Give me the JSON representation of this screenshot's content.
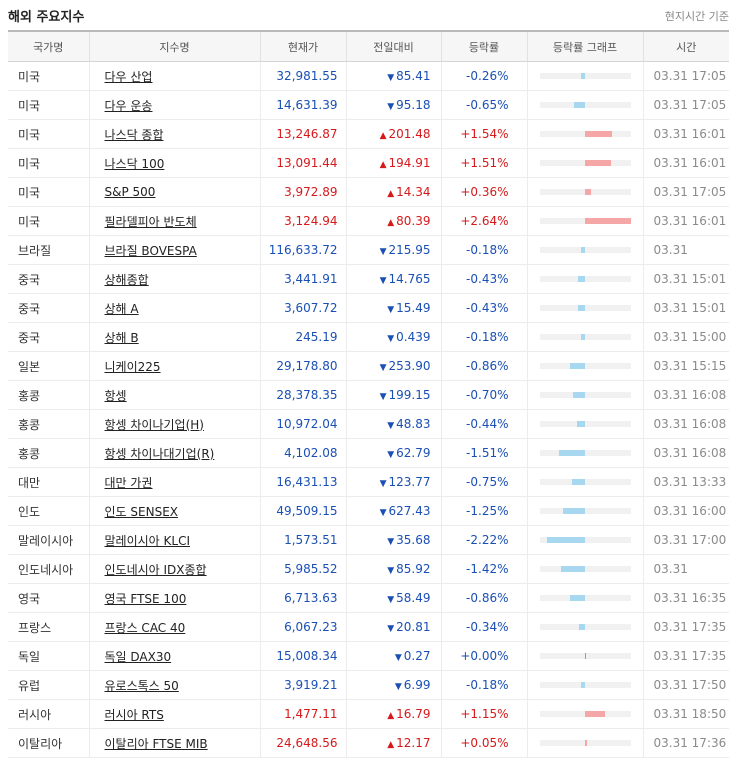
{
  "header": {
    "title": "해외 주요지수",
    "note": "현지시간 기준"
  },
  "columns": {
    "country": "국가명",
    "name": "지수명",
    "price": "현재가",
    "change": "전일대비",
    "rate": "등락률",
    "graph": "등락률 그래프",
    "time": "시간"
  },
  "colors": {
    "up": "#d6191b",
    "down": "#1a4fb4",
    "bar_up": "#f5a6a6",
    "bar_down": "#a8d8f0"
  },
  "rows": [
    {
      "country": "미국",
      "name": "다우 산업",
      "price": "32,981.55",
      "dir": "down",
      "change": "85.41",
      "rate": "-0.26%",
      "pct": -0.26,
      "time": "03.31 17:05",
      "group_start": false
    },
    {
      "country": "미국",
      "name": "다우 운송",
      "price": "14,631.39",
      "dir": "down",
      "change": "95.18",
      "rate": "-0.65%",
      "pct": -0.65,
      "time": "03.31 17:05",
      "group_start": false
    },
    {
      "country": "미국",
      "name": "나스닥 종합",
      "price": "13,246.87",
      "dir": "up",
      "change": "201.48",
      "rate": "+1.54%",
      "pct": 1.54,
      "time": "03.31 16:01",
      "group_start": false
    },
    {
      "country": "미국",
      "name": "나스닥 100",
      "price": "13,091.44",
      "dir": "up",
      "change": "194.91",
      "rate": "+1.51%",
      "pct": 1.51,
      "time": "03.31 16:01",
      "group_start": false
    },
    {
      "country": "미국",
      "name": "S&P 500",
      "price": "3,972.89",
      "dir": "up",
      "change": "14.34",
      "rate": "+0.36%",
      "pct": 0.36,
      "time": "03.31 17:05",
      "group_start": false
    },
    {
      "country": "미국",
      "name": "필라델피아 반도체",
      "price": "3,124.94",
      "dir": "up",
      "change": "80.39",
      "rate": "+2.64%",
      "pct": 2.64,
      "time": "03.31 16:01",
      "group_start": false
    },
    {
      "country": "브라질",
      "name": "브라질 BOVESPA",
      "price": "116,633.72",
      "dir": "down",
      "change": "215.95",
      "rate": "-0.18%",
      "pct": -0.18,
      "time": "03.31",
      "group_start": false
    },
    {
      "country": "중국",
      "name": "상해종합",
      "price": "3,441.91",
      "dir": "down",
      "change": "14.765",
      "rate": "-0.43%",
      "pct": -0.43,
      "time": "03.31 15:01",
      "group_start": true
    },
    {
      "country": "중국",
      "name": "상해 A",
      "price": "3,607.72",
      "dir": "down",
      "change": "15.49",
      "rate": "-0.43%",
      "pct": -0.43,
      "time": "03.31 15:01",
      "group_start": false
    },
    {
      "country": "중국",
      "name": "상해 B",
      "price": "245.19",
      "dir": "down",
      "change": "0.439",
      "rate": "-0.18%",
      "pct": -0.18,
      "time": "03.31 15:00",
      "group_start": false
    },
    {
      "country": "일본",
      "name": "니케이225",
      "price": "29,178.80",
      "dir": "down",
      "change": "253.90",
      "rate": "-0.86%",
      "pct": -0.86,
      "time": "03.31 15:15",
      "group_start": false
    },
    {
      "country": "홍콩",
      "name": "항셍",
      "price": "28,378.35",
      "dir": "down",
      "change": "199.15",
      "rate": "-0.70%",
      "pct": -0.7,
      "time": "03.31 16:08",
      "group_start": false
    },
    {
      "country": "홍콩",
      "name": "항셍 차이나기업(H)",
      "price": "10,972.04",
      "dir": "down",
      "change": "48.83",
      "rate": "-0.44%",
      "pct": -0.44,
      "time": "03.31 16:08",
      "group_start": false
    },
    {
      "country": "홍콩",
      "name": "항셍 차이나대기업(R)",
      "price": "4,102.08",
      "dir": "down",
      "change": "62.79",
      "rate": "-1.51%",
      "pct": -1.51,
      "time": "03.31 16:08",
      "group_start": false
    },
    {
      "country": "대만",
      "name": "대만 가권",
      "price": "16,431.13",
      "dir": "down",
      "change": "123.77",
      "rate": "-0.75%",
      "pct": -0.75,
      "time": "03.31 13:33",
      "group_start": false
    },
    {
      "country": "인도",
      "name": "인도 SENSEX",
      "price": "49,509.15",
      "dir": "down",
      "change": "627.43",
      "rate": "-1.25%",
      "pct": -1.25,
      "time": "03.31 16:00",
      "group_start": false
    },
    {
      "country": "말레이시아",
      "name": "말레이시아 KLCI",
      "price": "1,573.51",
      "dir": "down",
      "change": "35.68",
      "rate": "-2.22%",
      "pct": -2.22,
      "time": "03.31 17:00",
      "group_start": false
    },
    {
      "country": "인도네시아",
      "name": "인도네시아 IDX종합",
      "price": "5,985.52",
      "dir": "down",
      "change": "85.92",
      "rate": "-1.42%",
      "pct": -1.42,
      "time": "03.31",
      "group_start": false
    },
    {
      "country": "영국",
      "name": "영국 FTSE 100",
      "price": "6,713.63",
      "dir": "down",
      "change": "58.49",
      "rate": "-0.86%",
      "pct": -0.86,
      "time": "03.31 16:35",
      "group_start": true
    },
    {
      "country": "프랑스",
      "name": "프랑스 CAC 40",
      "price": "6,067.23",
      "dir": "down",
      "change": "20.81",
      "rate": "-0.34%",
      "pct": -0.34,
      "time": "03.31 17:35",
      "group_start": false
    },
    {
      "country": "독일",
      "name": "독일 DAX30",
      "price": "15,008.34",
      "dir": "down",
      "change": "0.27",
      "rate": "+0.00%",
      "pct": 0.0,
      "time": "03.31 17:35",
      "group_start": false
    },
    {
      "country": "유럽",
      "name": "유로스톡스 50",
      "price": "3,919.21",
      "dir": "down",
      "change": "6.99",
      "rate": "-0.18%",
      "pct": -0.18,
      "time": "03.31 17:50",
      "group_start": false
    },
    {
      "country": "러시아",
      "name": "러시아 RTS",
      "price": "1,477.11",
      "dir": "up",
      "change": "16.79",
      "rate": "+1.15%",
      "pct": 1.15,
      "time": "03.31 18:50",
      "group_start": false
    },
    {
      "country": "이탈리아",
      "name": "이탈리아 FTSE MIB",
      "price": "24,648.56",
      "dir": "up",
      "change": "12.17",
      "rate": "+0.05%",
      "pct": 0.05,
      "time": "03.31 17:36",
      "group_start": false
    }
  ]
}
